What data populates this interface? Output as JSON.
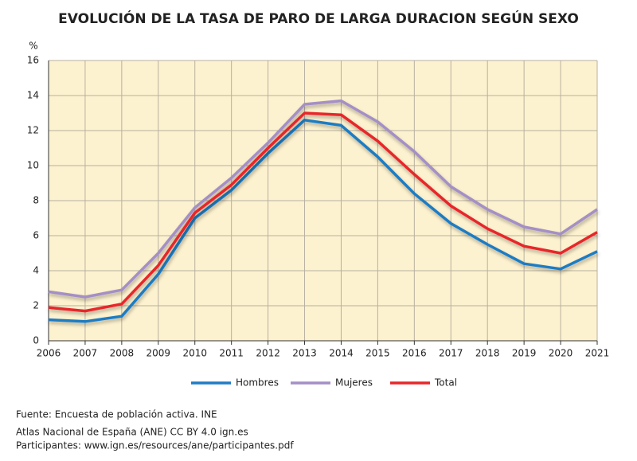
{
  "chart_data": {
    "type": "line",
    "title": "EVOLUCIÓN DE LA TASA DE PARO DE LARGA DURACION SEGÚN SEXO",
    "y_label": "%",
    "x": [
      2006,
      2007,
      2008,
      2009,
      2010,
      2011,
      2012,
      2013,
      2014,
      2015,
      2016,
      2017,
      2018,
      2019,
      2020,
      2021
    ],
    "xlim": [
      2006,
      2021
    ],
    "xticks": [
      2006,
      2007,
      2008,
      2009,
      2010,
      2011,
      2012,
      2013,
      2014,
      2015,
      2016,
      2017,
      2018,
      2019,
      2020,
      2021
    ],
    "ylim": [
      0,
      16
    ],
    "yticks": [
      0,
      2,
      4,
      6,
      8,
      10,
      12,
      14,
      16
    ],
    "grid": true,
    "legend": "bottom",
    "series": [
      {
        "name": "Hombres",
        "color": "#1f7cc4",
        "values": [
          1.2,
          1.1,
          1.4,
          3.8,
          7.0,
          8.6,
          10.7,
          12.6,
          12.3,
          10.5,
          8.4,
          6.7,
          5.5,
          4.4,
          4.1,
          5.1
        ]
      },
      {
        "name": "Mujeres",
        "color": "#a48fc6",
        "values": [
          2.8,
          2.5,
          2.9,
          5.0,
          7.6,
          9.3,
          11.3,
          13.5,
          13.7,
          12.5,
          10.8,
          8.8,
          7.5,
          6.5,
          6.1,
          7.5
        ]
      },
      {
        "name": "Total",
        "color": "#e8262a",
        "values": [
          1.9,
          1.7,
          2.1,
          4.3,
          7.3,
          8.9,
          11.0,
          13.0,
          12.9,
          11.4,
          9.5,
          7.7,
          6.4,
          5.4,
          5.0,
          6.2
        ]
      }
    ],
    "notes": [
      "Fuente: Encuesta de población activa. INE",
      "Atlas Nacional de España (ANE) CC BY 4.0 ign.es",
      "Participantes: www.ign.es/resources/ane/participantes.pdf"
    ]
  }
}
